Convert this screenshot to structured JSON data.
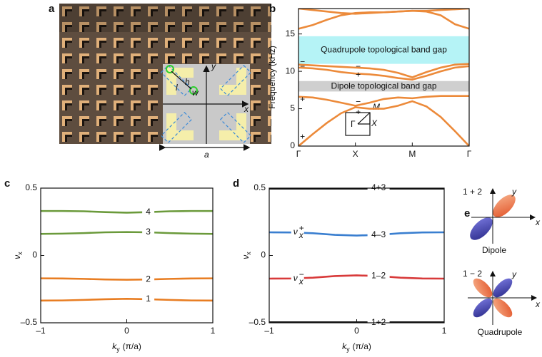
{
  "panel_labels": [
    "a",
    "b",
    "c",
    "d",
    "e"
  ],
  "unit_cell": {
    "y": "y",
    "x": "x",
    "h": "h",
    "w": "w",
    "l": "l",
    "a": "a"
  },
  "chart_data": [
    {
      "type": "line",
      "ylabel": "Frequency (kHz)",
      "x": [
        0,
        0.25,
        0.5,
        0.75,
        1,
        1.25,
        1.5,
        1.75,
        2,
        2.25,
        2.5,
        2.75,
        3
      ],
      "xlim": [
        0,
        3
      ],
      "xticks": [
        {
          "value": 0,
          "label": "Γ"
        },
        {
          "value": 1,
          "label": "X"
        },
        {
          "value": 2,
          "label": "M"
        },
        {
          "value": 3,
          "label": "Γ"
        }
      ],
      "ylim": [
        0,
        18.4
      ],
      "yticks": [
        0,
        5,
        10,
        15
      ],
      "regions": [
        {
          "label": "Quadrupole topological band gap",
          "range": [
            11.0,
            14.7
          ],
          "color": "#b5f3f6"
        },
        {
          "label": "Dipole topological band gap",
          "range": [
            7.3,
            8.7
          ],
          "color": "#cfcfcf"
        }
      ],
      "series": [
        {
          "color": "#ec8a3a",
          "values": [
            0,
            1.6,
            3.1,
            4.4,
            5.2,
            5.0,
            5.0,
            5.4,
            6.0,
            5.3,
            3.9,
            2.0,
            0
          ]
        },
        {
          "color": "#ec8a3a",
          "values": [
            6.6,
            6.5,
            6.2,
            5.8,
            5.4,
            5.8,
            6.3,
            6.5,
            6.4,
            6.6,
            6.7,
            6.7,
            6.7
          ]
        },
        {
          "color": "#ec8a3a",
          "values": [
            10.5,
            10.4,
            10.2,
            9.9,
            9.7,
            9.6,
            9.4,
            9.1,
            8.9,
            9.4,
            10.0,
            10.5,
            10.7
          ]
        },
        {
          "color": "#ec8a3a",
          "values": [
            10.9,
            10.8,
            10.7,
            10.6,
            10.5,
            10.4,
            10.2,
            9.8,
            9.2,
            9.9,
            10.5,
            10.9,
            11.0
          ]
        },
        {
          "color": "#ec8a3a",
          "values": [
            15.7,
            16.2,
            16.9,
            17.5,
            17.8,
            17.9,
            17.9,
            18.0,
            18.1,
            18.0,
            17.5,
            16.3,
            15.7
          ]
        },
        {
          "color": "#ec8a3a",
          "values": [
            18.4,
            18.2,
            18.0,
            17.8,
            17.7,
            17.8,
            17.9,
            18.0,
            18.1,
            18.1,
            18.2,
            18.3,
            18.4
          ]
        }
      ],
      "annotation_color": "#e0202a",
      "annotations": [
        {
          "text": "+",
          "x": 0.07,
          "y": 1.2
        },
        {
          "text": "+",
          "x": 0.07,
          "y": 6.2
        },
        {
          "text": "−",
          "x": 0.07,
          "y": 10.6
        },
        {
          "text": "−",
          "x": 0.07,
          "y": 11.2
        },
        {
          "text": "−",
          "x": 1.05,
          "y": 5.9
        },
        {
          "text": "+",
          "x": 1.05,
          "y": 4.5
        },
        {
          "text": "−",
          "x": 1.05,
          "y": 10.6
        },
        {
          "text": "+",
          "x": 1.05,
          "y": 9.5
        }
      ],
      "inset_labels": [
        "Γ",
        "X",
        "M"
      ]
    },
    {
      "type": "line",
      "ylabel": {
        "main": "ν",
        "sub": "x"
      },
      "xlabel": {
        "main": "k",
        "sub": "y",
        "unit": "(π/a)"
      },
      "x": [
        -1,
        -0.75,
        -0.5,
        -0.25,
        0,
        0.25,
        0.5,
        0.75,
        1
      ],
      "xlim": [
        -1,
        1
      ],
      "xticks": [
        {
          "value": -1,
          "label": "–1"
        },
        0,
        1
      ],
      "ylim": [
        -0.5,
        0.5
      ],
      "yticks": [
        {
          "value": -0.5,
          "label": "–0.5"
        },
        0,
        0.5
      ],
      "line_labels": true,
      "series": [
        {
          "name": "4",
          "color": "#6b9a3b",
          "values": [
            0.33,
            0.33,
            0.328,
            0.322,
            0.318,
            0.322,
            0.328,
            0.33,
            0.33
          ]
        },
        {
          "name": "3",
          "color": "#6b9a3b",
          "values": [
            0.16,
            0.162,
            0.166,
            0.172,
            0.174,
            0.172,
            0.166,
            0.162,
            0.16
          ]
        },
        {
          "name": "2",
          "color": "#e87d22",
          "values": [
            -0.17,
            -0.171,
            -0.174,
            -0.178,
            -0.18,
            -0.178,
            -0.174,
            -0.171,
            -0.17
          ]
        },
        {
          "name": "1",
          "color": "#e87d22",
          "values": [
            -0.335,
            -0.334,
            -0.33,
            -0.325,
            -0.322,
            -0.325,
            -0.33,
            -0.334,
            -0.335
          ]
        }
      ]
    },
    {
      "type": "line",
      "ylabel": {
        "main": "ν",
        "sub": "x"
      },
      "xlabel": {
        "main": "k",
        "sub": "y",
        "unit": "(π/a)"
      },
      "x": [
        -1,
        -0.75,
        -0.5,
        -0.25,
        0,
        0.25,
        0.5,
        0.75,
        1
      ],
      "xlim": [
        -1,
        1
      ],
      "xticks": [
        {
          "value": -1,
          "label": "–1"
        },
        0,
        1
      ],
      "ylim": [
        -0.5,
        0.5
      ],
      "yticks": [
        {
          "value": -0.5,
          "label": "–0.5"
        },
        0,
        0.5
      ],
      "line_labels": true,
      "series": [
        {
          "name": "4+3",
          "color": "#111111",
          "linewidth": 4,
          "values": [
            0.5,
            0.5,
            0.5,
            0.5,
            0.5,
            0.5,
            0.5,
            0.5,
            0.5
          ]
        },
        {
          "name": "4–3",
          "color": "#3a7fd0",
          "values": [
            0.172,
            0.171,
            0.165,
            0.153,
            0.148,
            0.153,
            0.165,
            0.171,
            0.172
          ]
        },
        {
          "name": "1–2",
          "color": "#d83a3a",
          "values": [
            -0.172,
            -0.171,
            -0.165,
            -0.153,
            -0.148,
            -0.153,
            -0.165,
            -0.171,
            -0.172
          ]
        },
        {
          "name": "1+2",
          "color": "#111111",
          "linewidth": 4,
          "values": [
            -0.5,
            -0.5,
            -0.5,
            -0.5,
            -0.5,
            -0.5,
            -0.5,
            -0.5,
            -0.5
          ]
        }
      ],
      "annotations": [
        {
          "main": "ν",
          "sub": "x",
          "sup": "+",
          "x": -0.7,
          "y": 0.172,
          "color": "#3a7fd0"
        },
        {
          "main": "ν",
          "sub": "x",
          "sup": "−",
          "x": -0.7,
          "y": -0.172,
          "color": "#d83a3a"
        }
      ]
    }
  ],
  "orbitals": {
    "top_label": "1 + 2",
    "top_caption": "Dipole",
    "bottom_label": "1 − 2",
    "bottom_caption": "Quadrupole",
    "x": "x",
    "y": "y"
  }
}
